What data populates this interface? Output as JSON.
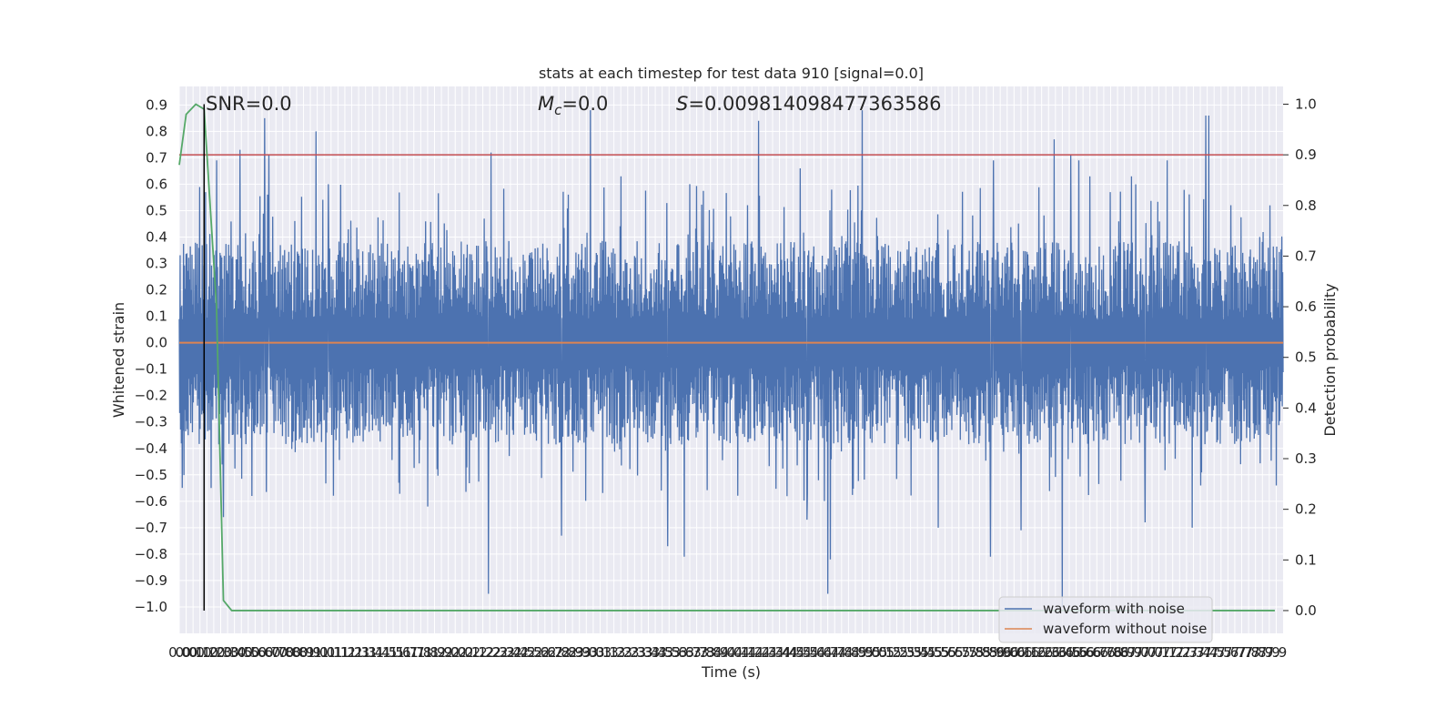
{
  "chart_data": {
    "type": "line",
    "title": "stats at each timestep for test data 910 [signal=0.0]",
    "xlabel": "Time (s)",
    "ylabel": "Whitened strain",
    "y2label": "Detection probability",
    "xlim": [
      0.0,
      8.0
    ],
    "ylim": [
      -1.1,
      0.97
    ],
    "y2lim": [
      -0.045,
      1.035
    ],
    "grid": true,
    "legend_position": "lower right",
    "x_ticks": [
      0.0,
      0.05,
      0.1,
      0.15,
      0.2,
      0.25,
      0.3,
      0.35,
      0.4,
      0.45,
      0.5,
      0.55,
      0.6,
      0.65,
      0.7,
      0.75,
      0.8,
      0.85,
      0.9,
      0.95,
      1.0,
      1.05,
      1.1,
      1.15,
      1.2,
      1.25,
      1.3,
      1.35,
      1.4,
      1.45,
      1.5,
      1.55,
      1.6,
      1.65,
      1.7,
      1.75,
      1.8,
      1.85,
      1.9,
      1.95,
      2.0,
      2.05,
      2.1,
      2.15,
      2.2,
      2.25,
      2.3,
      2.35,
      2.4,
      2.45,
      2.5,
      2.55,
      2.6,
      2.65,
      2.7,
      2.75,
      2.8,
      2.85,
      2.9,
      2.95,
      3.0,
      3.05,
      3.1,
      3.15,
      3.2,
      3.25,
      3.3,
      3.35,
      3.4,
      3.45,
      3.5,
      3.55,
      3.6,
      3.65,
      3.7,
      3.75,
      3.8,
      3.85,
      3.9,
      3.95,
      4.0,
      4.05,
      4.1,
      4.15,
      4.2,
      4.25,
      4.3,
      4.35,
      4.4,
      4.45,
      4.5,
      4.55,
      4.6,
      4.65,
      4.7,
      4.75,
      4.8,
      4.85,
      4.9,
      4.95,
      5.0,
      5.05,
      5.1,
      5.15,
      5.2,
      5.25,
      5.3,
      5.35,
      5.4,
      5.45,
      5.5,
      5.55,
      5.6,
      5.65,
      5.7,
      5.75,
      5.8,
      5.85,
      5.9,
      5.95,
      6.0,
      6.05,
      6.1,
      6.15,
      6.2,
      6.25,
      6.3,
      6.35,
      6.4,
      6.45,
      6.5,
      6.55,
      6.6,
      6.65,
      6.7,
      6.75,
      6.8,
      6.85,
      6.9,
      6.95,
      7.0,
      7.05,
      7.1,
      7.15,
      7.2,
      7.25,
      7.3,
      7.35,
      7.4,
      7.45,
      7.5,
      7.55,
      7.6,
      7.65,
      7.7,
      7.75,
      7.8,
      7.85,
      7.9,
      7.95
    ],
    "x_tick_labels": [
      "0.0",
      "0.0",
      "0.1",
      "0.1",
      "0.2",
      "0.2",
      "0.3",
      "0.3",
      "0.4",
      "0.5",
      "0.5",
      "0.6",
      "0.6",
      "0.7",
      "0.7",
      "0.8",
      "0.8",
      "0.8",
      "0.9",
      "0.9",
      "1.0",
      "1.0",
      "1.1",
      "1.1",
      "1.2",
      "1.2",
      "1.3",
      "1.3",
      "1.4",
      "1.4",
      "1.5",
      "1.5",
      "1.6",
      "1.7",
      "1.7",
      "1.8",
      "1.8",
      "1.9",
      "1.9",
      "2.0",
      "2.0",
      "2.0",
      "2.1",
      "2.1",
      "2.2",
      "2.2",
      "2.3",
      "2.3",
      "2.4",
      "2.4",
      "2.5",
      "2.5",
      "2.6",
      "2.6",
      "2.7",
      "2.8",
      "2.8",
      "2.9",
      "2.9",
      "3.0",
      "3.0",
      "3.1",
      "3.1",
      "3.2",
      "3.2",
      "3.2",
      "3.3",
      "3.3",
      "3.4",
      "3.4",
      "3.5",
      "3.5",
      "3.6",
      "3.6",
      "3.7",
      "3.7",
      "3.8",
      "3.8",
      "3.9",
      "4.0",
      "4.0",
      "4.1",
      "4.1",
      "4.2",
      "4.2",
      "4.3",
      "4.3",
      "4.4",
      "4.4",
      "4.5",
      "4.5",
      "4.5",
      "4.6",
      "4.6",
      "4.7",
      "4.7",
      "4.8",
      "4.8",
      "4.9",
      "4.9",
      "5.0",
      "5.0",
      "5.1",
      "5.2",
      "5.2",
      "5.3",
      "5.3",
      "5.4",
      "5.4",
      "5.5",
      "5.5",
      "5.6",
      "5.6",
      "5.7",
      "5.7",
      "5.8",
      "5.8",
      "5.8",
      "5.9",
      "5.9",
      "6.0",
      "6.0",
      "6.1",
      "6.1",
      "6.2",
      "6.2",
      "6.3",
      "6.3",
      "6.4",
      "6.5",
      "6.5",
      "6.6",
      "6.6",
      "6.7",
      "6.7",
      "6.8",
      "6.8",
      "6.9",
      "6.9",
      "7.0",
      "7.0",
      "7.0",
      "7.1",
      "7.1",
      "7.2",
      "7.2",
      "7.3",
      "7.3",
      "7.4",
      "7.4",
      "7.5",
      "7.5",
      "7.6",
      "7.7",
      "7.7",
      "7.8",
      "7.8",
      "7.9",
      "7.9",
      "7.9"
    ],
    "y_ticks": [
      0.9,
      0.8,
      0.7,
      0.6,
      0.5,
      0.4,
      0.3,
      0.2,
      0.1,
      0.0,
      -0.1,
      -0.2,
      -0.3,
      -0.4,
      -0.5,
      -0.6,
      -0.7,
      -0.8,
      -0.9,
      -1.0
    ],
    "y_tick_labels": [
      "0.9",
      "0.8",
      "0.7",
      "0.6",
      "0.5",
      "0.4",
      "0.3",
      "0.2",
      "0.1",
      "0.0",
      "−0.1",
      "−0.2",
      "−0.3",
      "−0.4",
      "−0.5",
      "−0.6",
      "−0.7",
      "−0.8",
      "−0.9",
      "−1.0"
    ],
    "y2_ticks": [
      1.0,
      0.9,
      0.8,
      0.7,
      0.6,
      0.5,
      0.4,
      0.3,
      0.2,
      0.1,
      0.0
    ],
    "y2_tick_labels": [
      "1.0",
      "0.9",
      "0.8",
      "0.7",
      "0.6",
      "0.5",
      "0.4",
      "0.3",
      "0.2",
      "0.1",
      "0.0"
    ],
    "annotations": {
      "snr": "SNR=0.0",
      "mc_symbol": "M",
      "mc_subscript": "c",
      "mc_value": "=0.0",
      "s_symbol": "S",
      "s_value": "=0.009814098477363586"
    },
    "series": [
      {
        "name": "waveform with noise",
        "color": "#4c72b0",
        "noise_band": [
          -0.35,
          0.35
        ],
        "spikes": [
          [
            0.19,
            0.57
          ],
          [
            0.27,
            0.69
          ],
          [
            0.44,
            0.73
          ],
          [
            0.62,
            0.85
          ],
          [
            0.65,
            0.71
          ],
          [
            0.99,
            0.8
          ],
          [
            1.08,
            0.6
          ],
          [
            2.26,
            0.72
          ],
          [
            2.98,
            0.88
          ],
          [
            3.2,
            0.63
          ],
          [
            3.7,
            0.6
          ],
          [
            4.2,
            0.84
          ],
          [
            4.5,
            0.66
          ],
          [
            4.95,
            0.88
          ],
          [
            5.5,
            0.69
          ],
          [
            5.9,
            0.69
          ],
          [
            6.34,
            0.77
          ],
          [
            6.46,
            0.71
          ],
          [
            6.52,
            0.69
          ],
          [
            6.6,
            0.63
          ],
          [
            6.9,
            0.63
          ],
          [
            7.16,
            0.69
          ],
          [
            7.44,
            0.86
          ],
          [
            7.46,
            0.86
          ],
          [
            0.23,
            -0.55
          ],
          [
            0.32,
            -0.66
          ],
          [
            1.8,
            -0.62
          ],
          [
            2.24,
            -0.95
          ],
          [
            2.77,
            -0.73
          ],
          [
            3.54,
            -0.77
          ],
          [
            3.66,
            -0.81
          ],
          [
            4.55,
            -0.67
          ],
          [
            4.7,
            -0.95
          ],
          [
            4.72,
            -0.82
          ],
          [
            5.5,
            -0.7
          ],
          [
            5.88,
            -0.81
          ],
          [
            6.1,
            -0.71
          ],
          [
            6.4,
            -1.0
          ],
          [
            7.0,
            -0.68
          ],
          [
            7.34,
            -0.7
          ]
        ]
      },
      {
        "name": "waveform without noise",
        "color": "#dd8452",
        "x": [
          0.0,
          8.0
        ],
        "y": [
          0.0,
          0.0
        ]
      }
    ],
    "probability": {
      "color": "#55a868",
      "x": [
        0.0,
        0.05,
        0.12,
        0.18,
        0.27,
        0.32,
        0.38,
        0.8,
        2.0,
        4.0,
        6.0,
        7.94
      ],
      "y": [
        0.88,
        0.98,
        1.0,
        0.99,
        0.6,
        0.02,
        0.0,
        0.0,
        0.0,
        0.0,
        0.0,
        0.0
      ]
    },
    "threshold": {
      "color": "#c44e52",
      "value": 0.9
    },
    "marker": {
      "color": "#000000",
      "x": 0.18
    }
  }
}
